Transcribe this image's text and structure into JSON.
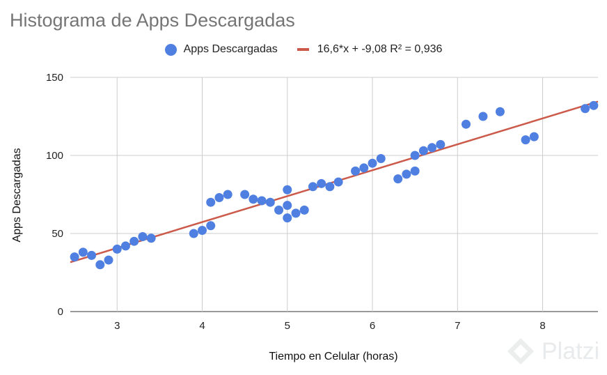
{
  "chart_data": {
    "type": "scatter",
    "title": "Histograma de Apps Descargadas",
    "xlabel": "Tiempo en Celular (horas)",
    "ylabel": "Apps Descargadas",
    "xlim": [
      2.45,
      8.65
    ],
    "ylim": [
      0,
      150
    ],
    "xticks": [
      3,
      4,
      5,
      6,
      7,
      8
    ],
    "yticks": [
      0,
      50,
      100,
      150
    ],
    "grid": true,
    "legend_position": "top",
    "series": [
      {
        "name": "Apps Descargadas",
        "color": "#4f7fe0",
        "points": [
          [
            2.5,
            35
          ],
          [
            2.6,
            38
          ],
          [
            2.7,
            36
          ],
          [
            2.8,
            30
          ],
          [
            2.9,
            33
          ],
          [
            3.0,
            40
          ],
          [
            3.1,
            42
          ],
          [
            3.2,
            45
          ],
          [
            3.3,
            48
          ],
          [
            3.4,
            47
          ],
          [
            3.9,
            50
          ],
          [
            4.0,
            52
          ],
          [
            4.1,
            55
          ],
          [
            4.1,
            70
          ],
          [
            4.2,
            73
          ],
          [
            4.3,
            75
          ],
          [
            4.5,
            75
          ],
          [
            4.6,
            72
          ],
          [
            4.7,
            71
          ],
          [
            4.8,
            70
          ],
          [
            4.9,
            65
          ],
          [
            5.0,
            78
          ],
          [
            5.0,
            68
          ],
          [
            5.0,
            60
          ],
          [
            5.1,
            63
          ],
          [
            5.2,
            65
          ],
          [
            5.3,
            80
          ],
          [
            5.4,
            82
          ],
          [
            5.5,
            80
          ],
          [
            5.6,
            83
          ],
          [
            5.8,
            90
          ],
          [
            5.9,
            92
          ],
          [
            6.0,
            95
          ],
          [
            6.1,
            98
          ],
          [
            6.3,
            85
          ],
          [
            6.4,
            88
          ],
          [
            6.5,
            90
          ],
          [
            6.5,
            100
          ],
          [
            6.6,
            103
          ],
          [
            6.7,
            105
          ],
          [
            6.8,
            107
          ],
          [
            7.1,
            120
          ],
          [
            7.3,
            125
          ],
          [
            7.5,
            128
          ],
          [
            7.8,
            110
          ],
          [
            7.9,
            112
          ],
          [
            8.5,
            130
          ],
          [
            8.6,
            132
          ]
        ]
      }
    ],
    "trendline": {
      "label": "16,6*x + -9,08 R² = 0,936",
      "slope": 16.6,
      "intercept": -9.08,
      "r2": 0.936,
      "color": "#cc5a4a"
    }
  },
  "watermark": {
    "text": "Platzi",
    "icon": "platzi-logo-icon"
  }
}
